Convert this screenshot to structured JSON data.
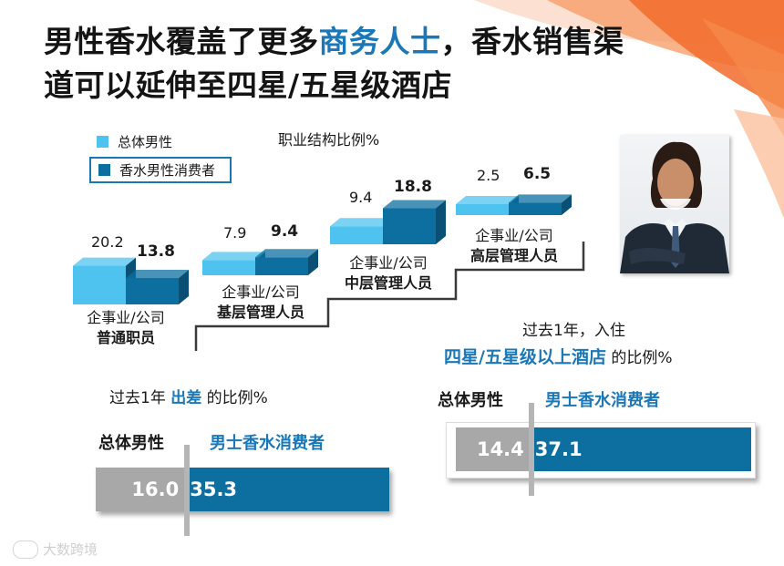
{
  "title": {
    "line1_pre": "男性香水覆盖了更多",
    "line1_hl": "商务人士",
    "line1_post": "，香水销售渠",
    "line2": "道可以延伸至四星/五星级酒店"
  },
  "colors": {
    "light_blue": "#4fc3ef",
    "dark_blue": "#0c6fa0",
    "grey": "#a8a8a8",
    "orange": "#f26b2b"
  },
  "watermark": "大数跨境",
  "photo": {
    "icon": "businessman-photo"
  },
  "chart_data": [
    {
      "type": "bar",
      "title": "职业结构比例%",
      "categories": [
        "企事业/公司 普通职员",
        "企事业/公司 基层管理人员",
        "企事业/公司 中层管理人员",
        "企事业/公司 高层管理人员"
      ],
      "category_labels": [
        {
          "line1": "企事业/公司",
          "line2": "普通职员"
        },
        {
          "line1": "企事业/公司",
          "line2": "基层管理人员"
        },
        {
          "line1": "企事业/公司",
          "line2": "中层管理人员"
        },
        {
          "line1": "企事业/公司",
          "line2": "高层管理人员"
        }
      ],
      "series": [
        {
          "name": "总体男性",
          "values": [
            20.2,
            7.9,
            9.4,
            2.5
          ]
        },
        {
          "name": "香水男性消费者",
          "values": [
            13.8,
            9.4,
            18.8,
            6.5
          ]
        }
      ],
      "value_labels": {
        "overall": [
          "20.2",
          "7.9",
          "9.4",
          "2.5"
        ],
        "consumer": [
          "13.8",
          "9.4",
          "18.8",
          "6.5"
        ]
      },
      "legend": "top-left"
    },
    {
      "type": "bar",
      "title_pre": "过去1年",
      "title_hl": "出差",
      "title_post": "的比例%",
      "headers": {
        "overall": "总体男性",
        "consumer": "男士香水消费者"
      },
      "series": [
        {
          "name": "总体男性",
          "values": [
            16.0
          ]
        },
        {
          "name": "男士香水消费者",
          "values": [
            35.3
          ]
        }
      ],
      "value_labels": {
        "overall": "16.0",
        "consumer": "35.3"
      }
    },
    {
      "type": "bar",
      "title_line1": "过去1年，入住",
      "title_hl": "四星/五星级以上酒店",
      "title_post": "的比例%",
      "headers": {
        "overall": "总体男性",
        "consumer": "男士香水消费者"
      },
      "series": [
        {
          "name": "总体男性",
          "values": [
            14.4
          ]
        },
        {
          "name": "男士香水消费者",
          "values": [
            37.1
          ]
        }
      ],
      "value_labels": {
        "overall": "14.4",
        "consumer": "37.1"
      }
    }
  ]
}
